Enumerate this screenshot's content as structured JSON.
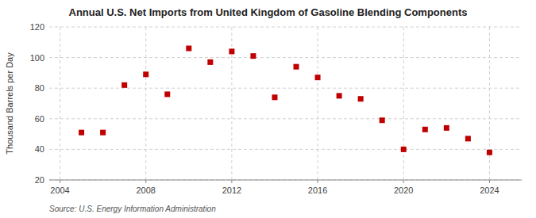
{
  "chart_data": {
    "type": "scatter",
    "title": "Annual U.S. Net Imports from United Kingdom of Gasoline Blending Components",
    "y_label": "Thousand Barrels per Day",
    "source": "Source: U.S. Energy Information Administration",
    "x": [
      2005,
      2006,
      2007,
      2008,
      2009,
      2010,
      2011,
      2012,
      2013,
      2014,
      2015,
      2016,
      2017,
      2018,
      2019,
      2020,
      2021,
      2022,
      2023,
      2024
    ],
    "values": [
      51,
      51,
      82,
      89,
      76,
      106,
      97,
      104,
      101,
      74,
      94,
      87,
      75,
      73,
      59,
      40,
      53,
      54,
      47,
      38
    ],
    "color": "#c00000",
    "marker": "square",
    "xlim": [
      2003.5,
      2025.5
    ],
    "xticks": [
      2004,
      2008,
      2012,
      2016,
      2020,
      2024
    ],
    "ylim": [
      20,
      120
    ],
    "yticks": [
      20,
      40,
      60,
      80,
      100,
      120
    ],
    "grid": true
  }
}
